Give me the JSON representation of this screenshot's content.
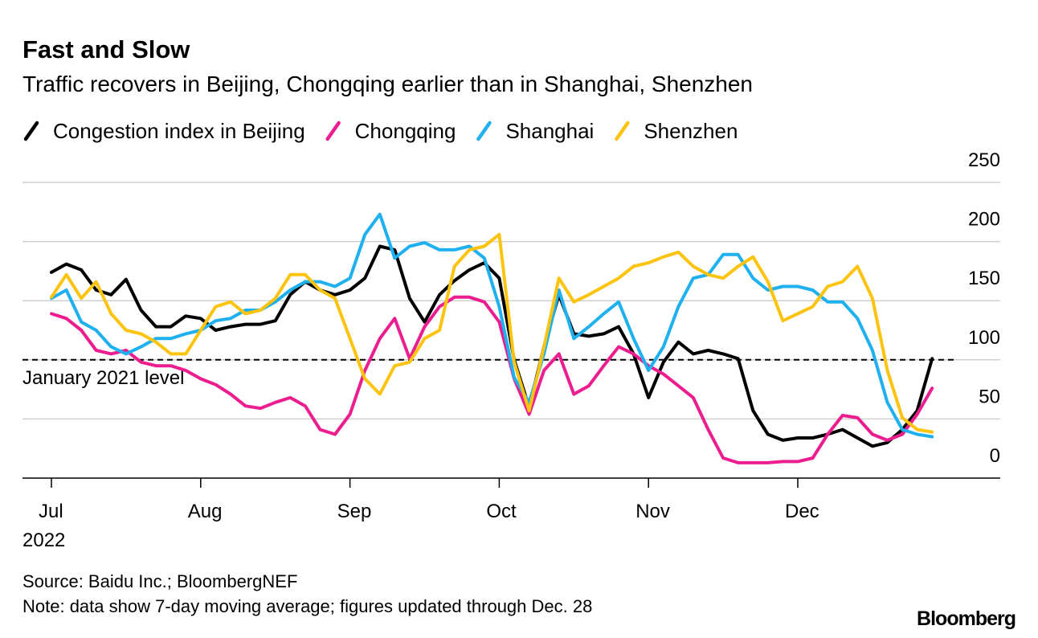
{
  "chart_data": {
    "type": "line",
    "title": "Fast and Slow",
    "subtitle": "Traffic recovers in Beijing, Chongqing earlier than in Shanghai, Shenzhen",
    "categories": [
      "Jul",
      null,
      null,
      null,
      null,
      null,
      null,
      null,
      null,
      null,
      "Aug",
      null,
      null,
      null,
      null,
      null,
      null,
      null,
      null,
      null,
      "Sep",
      null,
      null,
      null,
      null,
      null,
      null,
      null,
      null,
      null,
      "Oct",
      null,
      null,
      null,
      null,
      null,
      null,
      null,
      null,
      null,
      "Nov",
      null,
      null,
      null,
      null,
      null,
      null,
      null,
      null,
      null,
      "Dec",
      null,
      null,
      null,
      null,
      null,
      null,
      null,
      null,
      null
    ],
    "x_sublabel": "2022",
    "series": [
      {
        "name": "Congestion index in Beijing",
        "color": "#000000",
        "values": [
          174,
          181,
          176,
          159,
          155,
          168,
          142,
          128,
          128,
          137,
          135,
          125,
          128,
          130,
          130,
          133,
          155,
          166,
          159,
          155,
          159,
          169,
          196,
          193,
          152,
          132,
          155,
          167,
          176,
          182,
          169,
          100,
          60,
          111,
          155,
          122,
          120,
          122,
          128,
          105,
          68,
          98,
          115,
          105,
          108,
          105,
          101,
          57,
          37,
          32,
          34,
          34,
          37,
          41,
          34,
          27,
          30,
          41,
          57,
          101
        ]
      },
      {
        "name": "Chongqing",
        "color": "#ec1e8f",
        "values": [
          139,
          135,
          125,
          108,
          105,
          108,
          98,
          95,
          95,
          91,
          84,
          79,
          71,
          61,
          59,
          64,
          68,
          61,
          41,
          37,
          54,
          91,
          118,
          135,
          101,
          128,
          145,
          153,
          153,
          149,
          132,
          84,
          54,
          91,
          105,
          71,
          78,
          95,
          111,
          105,
          95,
          88,
          78,
          68,
          41,
          17,
          13,
          13,
          13,
          14,
          14,
          17,
          37,
          53,
          51,
          37,
          32,
          37,
          54,
          76
        ]
      },
      {
        "name": "Shanghai",
        "color": "#1fb0ef",
        "values": [
          152,
          159,
          132,
          125,
          111,
          105,
          111,
          118,
          118,
          122,
          125,
          133,
          135,
          142,
          142,
          149,
          159,
          166,
          166,
          162,
          169,
          206,
          223,
          186,
          196,
          199,
          193,
          193,
          196,
          186,
          145,
          85,
          64,
          105,
          159,
          118,
          128,
          139,
          149,
          118,
          91,
          111,
          145,
          169,
          172,
          189,
          189,
          169,
          159,
          162,
          162,
          159,
          149,
          149,
          135,
          108,
          64,
          41,
          37,
          35
        ]
      },
      {
        "name": "Shenzhen",
        "color": "#fcc30f",
        "values": [
          153,
          172,
          152,
          166,
          139,
          125,
          122,
          115,
          105,
          105,
          125,
          145,
          149,
          139,
          142,
          152,
          172,
          172,
          159,
          152,
          118,
          84,
          71,
          95,
          98,
          118,
          125,
          179,
          193,
          196,
          206,
          98,
          57,
          111,
          169,
          149,
          155,
          162,
          169,
          179,
          182,
          187,
          191,
          179,
          172,
          169,
          179,
          187,
          166,
          133,
          139,
          145,
          162,
          166,
          179,
          152,
          91,
          51,
          41,
          39
        ]
      }
    ],
    "reference": {
      "value": 100,
      "label": "January 2021 level"
    },
    "ylim": [
      0,
      250
    ],
    "yticks": [
      0,
      50,
      100,
      150,
      200,
      250
    ],
    "grid": true,
    "source": "Source: Baidu Inc.; BloombergNEF",
    "note": "Note: data show 7-day moving average; figures updated through Dec. 28",
    "brand": "Bloomberg"
  }
}
